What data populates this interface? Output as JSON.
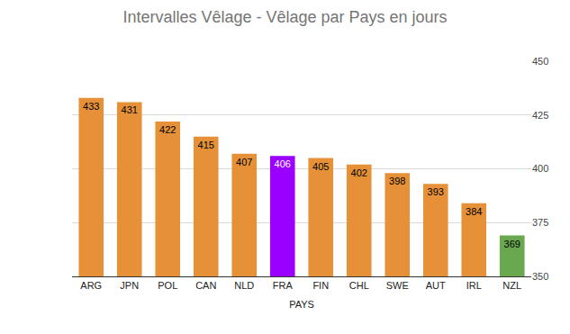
{
  "chart_data": {
    "type": "bar",
    "title": "Intervalles Vêlage - Vêlage par Pays en jours",
    "x_label": "PAYS",
    "categories": [
      "ARG",
      "JPN",
      "POL",
      "CAN",
      "NLD",
      "FRA",
      "FIN",
      "CHL",
      "SWE",
      "AUT",
      "IRL",
      "NZL"
    ],
    "values": [
      433,
      431,
      422,
      415,
      407,
      406,
      405,
      402,
      398,
      393,
      384,
      369
    ],
    "colors": [
      "#e69138",
      "#e69138",
      "#e69138",
      "#e69138",
      "#e69138",
      "#9900ff",
      "#e69138",
      "#e69138",
      "#e69138",
      "#e69138",
      "#e69138",
      "#6aa84f"
    ],
    "ylim": [
      350,
      450
    ],
    "yticks": [
      350,
      375,
      400,
      425,
      450
    ],
    "grid": true,
    "data_labels": true
  }
}
